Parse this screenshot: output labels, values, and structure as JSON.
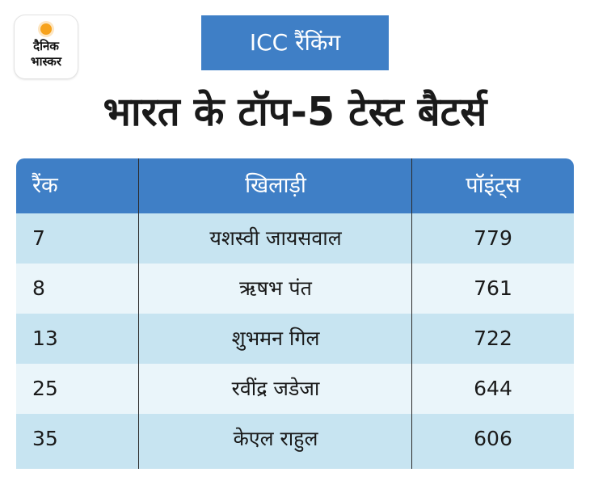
{
  "logo": {
    "line1": "दैनिक",
    "line2": "भास्कर"
  },
  "badge": "ICC रैंकिंग",
  "headline": "भारत के टॉप-5 टेस्ट बैटर्स",
  "colors": {
    "accent_blue": "#3f7fc6",
    "row_dark": "#c7e4f1",
    "row_light": "#eaf5fa",
    "logo_sun": "#f7a21b"
  },
  "table": {
    "headers": [
      "रैंक",
      "खिलाड़ी",
      "पॉइंट्स"
    ],
    "rows": [
      {
        "rank": "7",
        "player": "यशस्वी जायसवाल",
        "points": "779"
      },
      {
        "rank": "8",
        "player": "ऋषभ पंत",
        "points": "761"
      },
      {
        "rank": "13",
        "player": "शुभमन गिल",
        "points": "722"
      },
      {
        "rank": "25",
        "player": "रवींद्र जडेजा",
        "points": "644"
      },
      {
        "rank": "35",
        "player": "केएल राहुल",
        "points": "606"
      }
    ]
  }
}
